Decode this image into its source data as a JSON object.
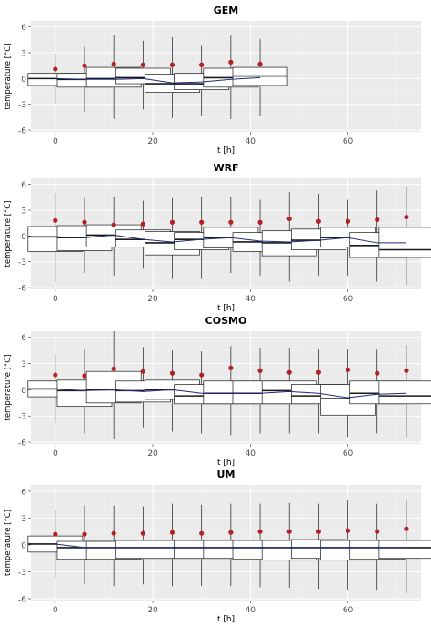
{
  "chart_data": [
    {
      "type": "boxplot",
      "title": "GEM",
      "xlabel": "t [h]",
      "ylabel": "temperature [°C]",
      "xlim": [
        -5,
        75
      ],
      "ylim": [
        -6.2,
        6.7
      ],
      "xticks": [
        0,
        20,
        40,
        60
      ],
      "yticks": [
        -6,
        -3,
        0,
        3,
        6
      ],
      "grid": true,
      "boxes": [
        {
          "t": 0,
          "min": -2.9,
          "q1": -0.8,
          "median": 0.0,
          "q3": 0.6,
          "max": 2.9
        },
        {
          "t": 6,
          "min": -3.9,
          "q1": -1.0,
          "median": -0.1,
          "q3": 0.6,
          "max": 3.7
        },
        {
          "t": 12,
          "min": -4.7,
          "q1": -1.0,
          "median": 0.0,
          "q3": 1.3,
          "max": 5.0
        },
        {
          "t": 18,
          "min": -3.6,
          "q1": -0.6,
          "median": 0.1,
          "q3": 1.2,
          "max": 4.4
        },
        {
          "t": 24,
          "min": -4.6,
          "q1": -1.6,
          "median": -0.6,
          "q3": 0.5,
          "max": 4.8
        },
        {
          "t": 30,
          "min": -4.3,
          "q1": -1.3,
          "median": -0.6,
          "q3": 0.6,
          "max": 3.8
        },
        {
          "t": 36,
          "min": -4.7,
          "q1": -1.0,
          "median": 0.1,
          "q3": 1.2,
          "max": 5.0
        },
        {
          "t": 42,
          "min": -4.3,
          "q1": -0.8,
          "median": 0.3,
          "q3": 1.3,
          "max": 4.6
        }
      ],
      "mean_points": [
        {
          "t": 0,
          "y": 1.1
        },
        {
          "t": 6,
          "y": 1.5
        },
        {
          "t": 12,
          "y": 1.7
        },
        {
          "t": 18,
          "y": 1.6
        },
        {
          "t": 24,
          "y": 1.6
        },
        {
          "t": 30,
          "y": 1.6
        },
        {
          "t": 36,
          "y": 1.9
        },
        {
          "t": 42,
          "y": 1.7
        }
      ],
      "trend_line": [
        {
          "t": 0,
          "y": 0.0
        },
        {
          "t": 6,
          "y": -0.1
        },
        {
          "t": 12,
          "y": -0.1
        },
        {
          "t": 18,
          "y": 0.0
        },
        {
          "t": 24,
          "y": -0.5
        },
        {
          "t": 30,
          "y": -0.4
        },
        {
          "t": 36,
          "y": -0.1
        },
        {
          "t": 42,
          "y": 0.1
        }
      ]
    },
    {
      "type": "boxplot",
      "title": "WRF",
      "xlabel": "t [h]",
      "ylabel": "temperature [°C]",
      "xlim": [
        -5,
        75
      ],
      "ylim": [
        -6.2,
        6.7
      ],
      "xticks": [
        0,
        20,
        40,
        60
      ],
      "yticks": [
        -6,
        -3,
        0,
        3,
        6
      ],
      "grid": true,
      "boxes": [
        {
          "t": 0,
          "min": -5.4,
          "q1": -1.8,
          "median": -0.1,
          "q3": 1.1,
          "max": 5.0
        },
        {
          "t": 6,
          "min": -4.3,
          "q1": -1.7,
          "median": -0.2,
          "q3": 1.2,
          "max": 4.4
        },
        {
          "t": 12,
          "min": -4.6,
          "q1": -1.3,
          "median": 0.1,
          "q3": 1.3,
          "max": 4.6
        },
        {
          "t": 18,
          "min": -3.8,
          "q1": -1.3,
          "median": -0.4,
          "q3": 0.7,
          "max": 4.1
        },
        {
          "t": 24,
          "min": -5.0,
          "q1": -2.2,
          "median": -0.8,
          "q3": 0.5,
          "max": 4.4
        },
        {
          "t": 30,
          "min": -5.0,
          "q1": -1.6,
          "median": -0.4,
          "q3": 0.4,
          "max": 4.6
        },
        {
          "t": 36,
          "min": -4.3,
          "q1": -1.4,
          "median": -0.2,
          "q3": 1.0,
          "max": 4.6
        },
        {
          "t": 42,
          "min": -4.6,
          "q1": -1.8,
          "median": -0.7,
          "q3": 0.4,
          "max": 4.2
        },
        {
          "t": 48,
          "min": -5.3,
          "q1": -2.3,
          "median": -0.8,
          "q3": 0.6,
          "max": 5.1
        },
        {
          "t": 54,
          "min": -4.6,
          "q1": -1.6,
          "median": -0.5,
          "q3": 0.8,
          "max": 4.9
        },
        {
          "t": 60,
          "min": -4.6,
          "q1": -1.3,
          "median": -0.2,
          "q3": 1.0,
          "max": 4.2
        },
        {
          "t": 66,
          "min": -5.3,
          "q1": -2.5,
          "median": -1.1,
          "q3": 0.4,
          "max": 5.3
        },
        {
          "t": 72,
          "min": -5.7,
          "q1": -2.5,
          "median": -1.6,
          "q3": 1.0,
          "max": 5.7
        }
      ],
      "mean_points": [
        {
          "t": 0,
          "y": 1.8
        },
        {
          "t": 6,
          "y": 1.6
        },
        {
          "t": 12,
          "y": 1.3
        },
        {
          "t": 18,
          "y": 1.4
        },
        {
          "t": 24,
          "y": 1.6
        },
        {
          "t": 30,
          "y": 1.6
        },
        {
          "t": 36,
          "y": 1.6
        },
        {
          "t": 42,
          "y": 1.6
        },
        {
          "t": 48,
          "y": 2.0
        },
        {
          "t": 54,
          "y": 1.7
        },
        {
          "t": 60,
          "y": 1.7
        },
        {
          "t": 66,
          "y": 1.9
        },
        {
          "t": 72,
          "y": 2.2
        }
      ],
      "trend_line": [
        {
          "t": 0,
          "y": -0.1
        },
        {
          "t": 6,
          "y": -0.2
        },
        {
          "t": 12,
          "y": 0.1
        },
        {
          "t": 18,
          "y": -0.4
        },
        {
          "t": 24,
          "y": -0.7
        },
        {
          "t": 30,
          "y": -0.4
        },
        {
          "t": 36,
          "y": -0.2
        },
        {
          "t": 42,
          "y": -0.6
        },
        {
          "t": 48,
          "y": -0.7
        },
        {
          "t": 54,
          "y": -0.5
        },
        {
          "t": 60,
          "y": -0.2
        },
        {
          "t": 66,
          "y": -0.8
        },
        {
          "t": 72,
          "y": -0.8
        }
      ]
    },
    {
      "type": "boxplot",
      "title": "COSMO",
      "xlabel": "t [h]",
      "ylabel": "temperature [°C]",
      "xlim": [
        -5,
        75
      ],
      "ylim": [
        -6.2,
        6.7
      ],
      "xticks": [
        0,
        20,
        40,
        60
      ],
      "yticks": [
        -6,
        -3,
        0,
        3,
        6
      ],
      "grid": true,
      "boxes": [
        {
          "t": 0,
          "min": -3.8,
          "q1": -0.8,
          "median": 0.1,
          "q3": 1.0,
          "max": 4.0
        },
        {
          "t": 6,
          "min": -5.0,
          "q1": -1.9,
          "median": -0.1,
          "q3": 1.1,
          "max": 4.6
        },
        {
          "t": 12,
          "min": -5.6,
          "q1": -1.5,
          "median": 0.0,
          "q3": 2.1,
          "max": 6.7
        },
        {
          "t": 18,
          "min": -4.3,
          "q1": -1.4,
          "median": -0.1,
          "q3": 1.0,
          "max": 4.9
        },
        {
          "t": 24,
          "min": -4.8,
          "q1": -1.1,
          "median": 0.0,
          "q3": 1.1,
          "max": 4.5
        },
        {
          "t": 30,
          "min": -5.0,
          "q1": -1.6,
          "median": -0.7,
          "q3": 0.6,
          "max": 4.4
        },
        {
          "t": 36,
          "min": -5.2,
          "q1": -1.6,
          "median": -0.4,
          "q3": 1.0,
          "max": 5.0
        },
        {
          "t": 42,
          "min": -5.0,
          "q1": -1.6,
          "median": -0.4,
          "q3": 1.0,
          "max": 4.8
        },
        {
          "t": 48,
          "min": -5.0,
          "q1": -1.6,
          "median": -0.1,
          "q3": 1.0,
          "max": 4.8
        },
        {
          "t": 54,
          "min": -5.0,
          "q1": -1.6,
          "median": -0.7,
          "q3": 0.6,
          "max": 4.6
        },
        {
          "t": 60,
          "min": -5.4,
          "q1": -2.9,
          "median": -1.0,
          "q3": 0.6,
          "max": 4.6
        },
        {
          "t": 66,
          "min": -5.0,
          "q1": -1.6,
          "median": -0.4,
          "q3": 1.0,
          "max": 4.6
        },
        {
          "t": 72,
          "min": -5.4,
          "q1": -1.6,
          "median": -0.7,
          "q3": 1.0,
          "max": 5.1
        }
      ],
      "mean_points": [
        {
          "t": 0,
          "y": 1.7
        },
        {
          "t": 6,
          "y": 1.6
        },
        {
          "t": 12,
          "y": 2.4
        },
        {
          "t": 18,
          "y": 2.1
        },
        {
          "t": 24,
          "y": 1.9
        },
        {
          "t": 30,
          "y": 1.7
        },
        {
          "t": 36,
          "y": 2.5
        },
        {
          "t": 42,
          "y": 2.2
        },
        {
          "t": 48,
          "y": 2.0
        },
        {
          "t": 54,
          "y": 2.0
        },
        {
          "t": 60,
          "y": 2.3
        },
        {
          "t": 66,
          "y": 1.9
        },
        {
          "t": 72,
          "y": 2.2
        }
      ],
      "trend_line": [
        {
          "t": 0,
          "y": 0.1
        },
        {
          "t": 6,
          "y": -0.1
        },
        {
          "t": 12,
          "y": 0.0
        },
        {
          "t": 18,
          "y": -0.2
        },
        {
          "t": 24,
          "y": 0.0
        },
        {
          "t": 30,
          "y": -0.4
        },
        {
          "t": 36,
          "y": -0.4
        },
        {
          "t": 42,
          "y": -0.4
        },
        {
          "t": 48,
          "y": -0.2
        },
        {
          "t": 54,
          "y": -0.4
        },
        {
          "t": 60,
          "y": -0.9
        },
        {
          "t": 66,
          "y": -0.5
        },
        {
          "t": 72,
          "y": -0.4
        }
      ]
    },
    {
      "type": "boxplot",
      "title": "UM",
      "xlabel": "t [h]",
      "ylabel": "temperature [°C]",
      "xlim": [
        -5,
        75
      ],
      "ylim": [
        -6.2,
        6.7
      ],
      "xticks": [
        0,
        20,
        40,
        60
      ],
      "yticks": [
        -6,
        -3,
        0,
        3,
        6
      ],
      "grid": true,
      "boxes": [
        {
          "t": 0,
          "min": -3.6,
          "q1": -0.8,
          "median": 0.1,
          "q3": 1.0,
          "max": 3.9
        },
        {
          "t": 6,
          "min": -4.4,
          "q1": -1.6,
          "median": -0.3,
          "q3": 0.4,
          "max": 4.4
        },
        {
          "t": 12,
          "min": -4.6,
          "q1": -1.6,
          "median": -0.3,
          "q3": 0.4,
          "max": 4.4
        },
        {
          "t": 18,
          "min": -4.4,
          "q1": -1.5,
          "median": -0.3,
          "q3": 0.5,
          "max": 4.3
        },
        {
          "t": 24,
          "min": -4.6,
          "q1": -1.5,
          "median": -0.3,
          "q3": 0.5,
          "max": 4.6
        },
        {
          "t": 30,
          "min": -4.6,
          "q1": -1.5,
          "median": -0.3,
          "q3": 0.5,
          "max": 4.5
        },
        {
          "t": 36,
          "min": -4.6,
          "q1": -1.5,
          "median": -0.3,
          "q3": 0.5,
          "max": 4.6
        },
        {
          "t": 42,
          "min": -4.7,
          "q1": -1.6,
          "median": -0.3,
          "q3": 0.5,
          "max": 4.6
        },
        {
          "t": 48,
          "min": -4.8,
          "q1": -1.7,
          "median": -0.3,
          "q3": 0.5,
          "max": 4.7
        },
        {
          "t": 54,
          "min": -4.9,
          "q1": -1.5,
          "median": -0.3,
          "q3": 0.6,
          "max": 4.6
        },
        {
          "t": 60,
          "min": -5.0,
          "q1": -1.7,
          "median": -0.3,
          "q3": 0.5,
          "max": 5.0
        },
        {
          "t": 66,
          "min": -5.0,
          "q1": -1.6,
          "median": -0.3,
          "q3": 0.5,
          "max": 4.6
        },
        {
          "t": 72,
          "min": -5.4,
          "q1": -1.5,
          "median": -0.3,
          "q3": 0.5,
          "max": 5.0
        }
      ],
      "mean_points": [
        {
          "t": 0,
          "y": 1.2
        },
        {
          "t": 6,
          "y": 1.2
        },
        {
          "t": 12,
          "y": 1.3
        },
        {
          "t": 18,
          "y": 1.3
        },
        {
          "t": 24,
          "y": 1.4
        },
        {
          "t": 30,
          "y": 1.3
        },
        {
          "t": 36,
          "y": 1.4
        },
        {
          "t": 42,
          "y": 1.5
        },
        {
          "t": 48,
          "y": 1.5
        },
        {
          "t": 54,
          "y": 1.5
        },
        {
          "t": 60,
          "y": 1.6
        },
        {
          "t": 66,
          "y": 1.5
        },
        {
          "t": 72,
          "y": 1.8
        }
      ],
      "trend_line": [
        {
          "t": 0,
          "y": 0.1
        },
        {
          "t": 6,
          "y": -0.3
        },
        {
          "t": 12,
          "y": -0.3
        },
        {
          "t": 18,
          "y": -0.3
        },
        {
          "t": 24,
          "y": -0.3
        },
        {
          "t": 30,
          "y": -0.3
        },
        {
          "t": 36,
          "y": -0.3
        },
        {
          "t": 42,
          "y": -0.3
        },
        {
          "t": 48,
          "y": -0.3
        },
        {
          "t": 54,
          "y": -0.3
        },
        {
          "t": 60,
          "y": -0.3
        },
        {
          "t": 66,
          "y": -0.3
        },
        {
          "t": 72,
          "y": -0.3
        }
      ]
    }
  ],
  "colors": {
    "panel_background": "#ebebeb",
    "grid_major": "#ffffff",
    "grid_minor": "#f4f4f4",
    "box_fill": "#ffffff",
    "box_stroke": "#1a1a1a",
    "mean_point": "#b22222",
    "trend_line": "#1f2a7a",
    "axis_text": "#4d4d4d"
  }
}
